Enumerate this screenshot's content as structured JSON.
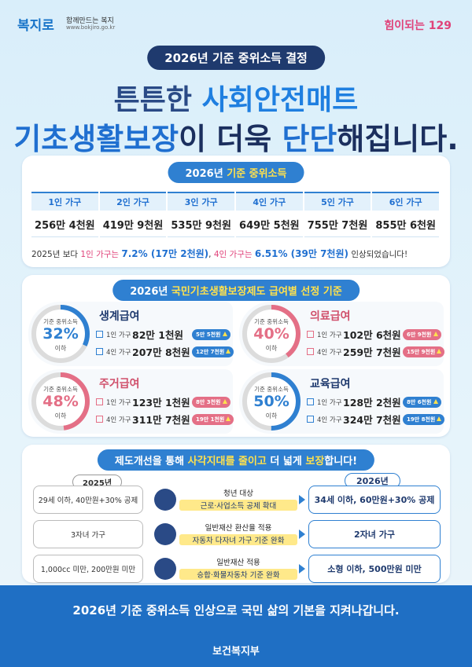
{
  "header": {
    "logo": "복지로",
    "logo_tagline": "함께만드는 복지",
    "logo_url": "www.bokjiro.go.kr",
    "hotline": "힘이되는 129"
  },
  "badge": "2026년 기준 중위소득 결정",
  "headline": {
    "line1": [
      "튼튼한 ",
      "사회안전매트"
    ],
    "line2": [
      "기초생활보장",
      "이 더욱 ",
      "단단",
      "해집니다."
    ]
  },
  "median_income": {
    "title": [
      "2026년 ",
      "기준 중위소득"
    ],
    "table": {
      "headers": [
        "1인 가구",
        "2인 가구",
        "3인 가구",
        "4인 가구",
        "5인 가구",
        "6인 가구"
      ],
      "rows": [
        [
          "256만 4천원",
          "419만 9천원",
          "535만 9천원",
          "649만 5천원",
          "755만 7천원",
          "855만 6천원"
        ]
      ]
    },
    "note": [
      "2025년 보다 ",
      "1인 가구는 ",
      "7.2% (17만 2천원)",
      ", ",
      "4인 가구는 ",
      "6.51% (39만 7천원)",
      " 인상되었습니다!"
    ]
  },
  "criteria": {
    "title": [
      "2026년 ",
      "국민기초생활보장제도 급여별 선정 기준"
    ],
    "benefits": [
      {
        "name": "생계급여",
        "basis": "기준 중위소득",
        "percent": "32%",
        "below": "이하",
        "rows": [
          {
            "household": "1인 가구",
            "amount": "82만 1천원",
            "increase": "5만 5천원"
          },
          {
            "household": "4인 가구",
            "amount": "207만 8천원",
            "increase": "12만 7천원"
          }
        ]
      },
      {
        "name": "의료급여",
        "basis": "기준 중위소득",
        "percent": "40%",
        "below": "이하",
        "rows": [
          {
            "household": "1인 가구",
            "amount": "102만 6천원",
            "increase": "6만 9천원"
          },
          {
            "household": "4인 가구",
            "amount": "259만 7천원",
            "increase": "15만 9천원"
          }
        ]
      },
      {
        "name": "주거급여",
        "basis": "기준 중위소득",
        "percent": "48%",
        "below": "이하",
        "rows": [
          {
            "household": "1인 가구",
            "amount": "123만 1천원",
            "increase": "8만 3천원"
          },
          {
            "household": "4인 가구",
            "amount": "311만 7천원",
            "increase": "19만 1천원"
          }
        ]
      },
      {
        "name": "교육급여",
        "basis": "기준 중위소득",
        "percent": "50%",
        "below": "이하",
        "rows": [
          {
            "household": "1인 가구",
            "amount": "128만 2천원",
            "increase": "8만 6천원"
          },
          {
            "household": "4인 가구",
            "amount": "324만 7천원",
            "increase": "19만 8천원"
          }
        ]
      }
    ]
  },
  "improvements": {
    "title": [
      "제도개선을 통해 ",
      "사각지대를 줄이고",
      " 더 넓게 ",
      "보장",
      "합니다!"
    ],
    "before_label": "2025년",
    "after_label": "2026년",
    "rows": [
      {
        "before": "29세 이하, 40만원+30% 공제",
        "target": "청년 대상",
        "change": "근로·사업소득 공제 확대",
        "after": "34세 이하, 60만원+30% 공제"
      },
      {
        "before": "3자녀 가구",
        "target": "일반재산 환산율 적용",
        "change": "자동차 다자녀 가구 기준 완화",
        "after": "2자녀 가구"
      },
      {
        "before": "1,000cc 미만, 200만원 미만",
        "target": "일반재산 적용",
        "change": "승합·화물자동차 기준 완화",
        "after": "소형 이하, 500만원 미만"
      }
    ]
  },
  "footer": {
    "slogan": "2026년 기준 중위소득 인상으로 국민 삶의 기본을 지켜나갑니다.",
    "ministry": "보건복지부"
  }
}
